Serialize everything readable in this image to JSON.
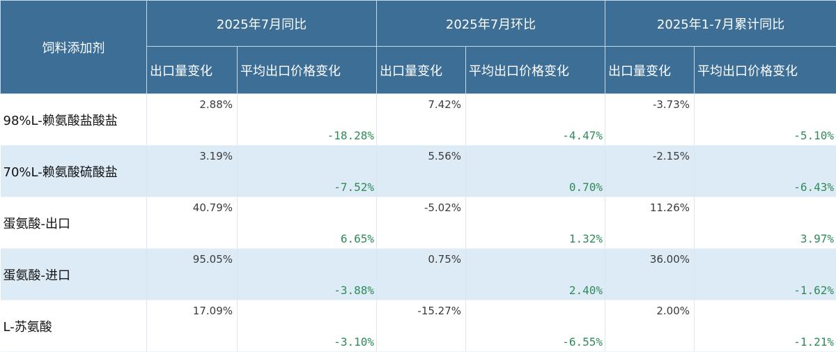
{
  "header": {
    "corner": "饲料添加剂",
    "groups": [
      "2025年7月同比",
      "2025年7月环比",
      "2025年1-7月累计同比"
    ],
    "sub": [
      "出口量变化",
      "平均出口价格变化",
      "出口量变化",
      "平均出口价格变化",
      "出口量变化",
      "平均出口价格变化"
    ]
  },
  "rows": [
    {
      "name": "98%L-赖氨酸盐酸盐",
      "values": [
        "2.88%",
        "-18.28%",
        "7.42%",
        "-4.47%",
        "-3.73%",
        "-5.10%"
      ]
    },
    {
      "name": "70%L-赖氨酸硫酸盐",
      "values": [
        "3.19%",
        "-7.52%",
        "5.56%",
        "0.70%",
        "-2.15%",
        "-6.43%"
      ]
    },
    {
      "name": "蛋氨酸-出口",
      "values": [
        "40.79%",
        "6.65%",
        "-5.02%",
        "1.32%",
        "11.26%",
        "3.97%"
      ]
    },
    {
      "name": "蛋氨酸-进口",
      "values": [
        "95.05%",
        "-3.88%",
        "0.75%",
        "2.40%",
        "36.00%",
        "-1.62%"
      ]
    },
    {
      "name": "L-苏氨酸",
      "values": [
        "17.09%",
        "-3.10%",
        "-15.27%",
        "-6.55%",
        "2.00%",
        "-1.21%"
      ]
    }
  ]
}
